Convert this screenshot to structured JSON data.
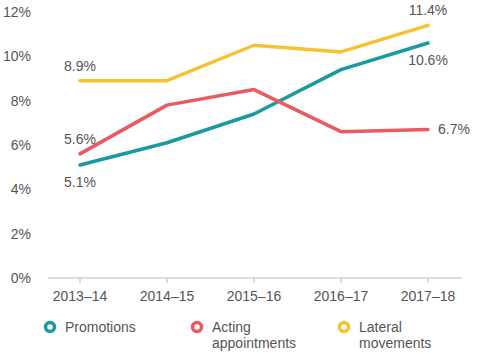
{
  "chart_data": {
    "type": "line",
    "categories": [
      "2013–14",
      "2014–15",
      "2015–16",
      "2016–17",
      "2017–18"
    ],
    "series": [
      {
        "name": "Promotions",
        "color": "#1a9a9f",
        "values": [
          5.1,
          6.1,
          7.4,
          9.4,
          10.6
        ],
        "value_labels": [
          "5.1%",
          null,
          null,
          null,
          "10.6%"
        ]
      },
      {
        "name": "Acting appointments",
        "color": "#ea5a5f",
        "values": [
          5.6,
          7.8,
          8.5,
          6.6,
          6.7
        ],
        "value_labels": [
          "5.6%",
          null,
          null,
          null,
          "6.7%"
        ]
      },
      {
        "name": "Lateral movements",
        "color": "#f6c232",
        "values": [
          8.9,
          8.9,
          10.5,
          10.2,
          11.4
        ],
        "value_labels": [
          "8.9%",
          null,
          null,
          null,
          "11.4%"
        ]
      }
    ],
    "ylim": [
      0,
      12
    ],
    "yticks": [
      {
        "value": 0,
        "label": "0%"
      },
      {
        "value": 2,
        "label": "2%"
      },
      {
        "value": 4,
        "label": "4%"
      },
      {
        "value": 6,
        "label": "6%"
      },
      {
        "value": 8,
        "label": "8%"
      },
      {
        "value": 10,
        "label": "10%"
      },
      {
        "value": 12,
        "label": "12%"
      }
    ],
    "grid": false,
    "legend": "bottom",
    "data_labels": true,
    "marker": "none"
  }
}
